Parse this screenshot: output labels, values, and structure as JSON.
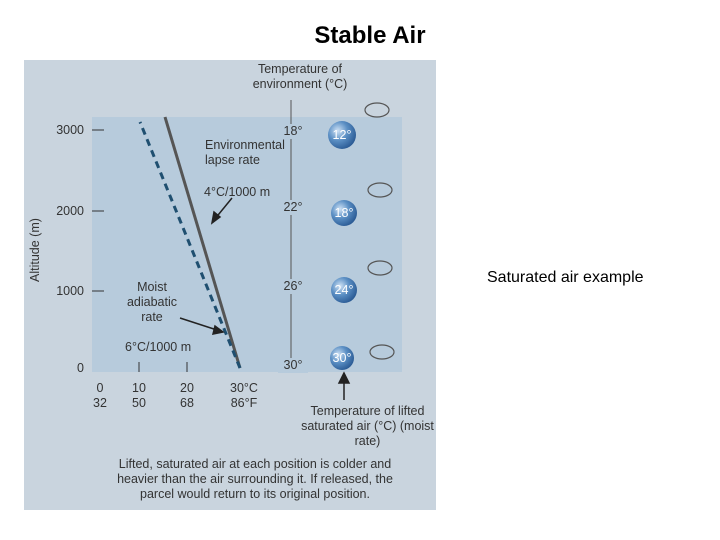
{
  "slide": {
    "title": "Stable Air",
    "caption": "Saturated air example"
  },
  "figure": {
    "y_axis_label": "Altitude (m)",
    "altitude_ticks": [
      "3000",
      "2000",
      "1000",
      "0"
    ],
    "celsius_ticks": [
      "0",
      "10",
      "20",
      "30°C"
    ],
    "fahrenheit_ticks": [
      "32",
      "50",
      "68",
      "86°F"
    ],
    "environment_header": "Temperature of environment (°C)",
    "environment_temps": [
      "18°",
      "22°",
      "26°",
      "30°"
    ],
    "parcel_temps": [
      "12°",
      "18°",
      "24°",
      "30°"
    ],
    "environmental_label": "Environmental lapse rate",
    "environmental_rate": "4°C/1000 m",
    "moist_label": "Moist adiabatic rate",
    "moist_rate": "6°C/1000 m",
    "parcel_header": "Temperature of lifted saturated air (°C) (moist rate)",
    "description": "Lifted, saturated air at each position is colder and heavier than the air surrounding it. If released, the parcel would return to its original position."
  }
}
